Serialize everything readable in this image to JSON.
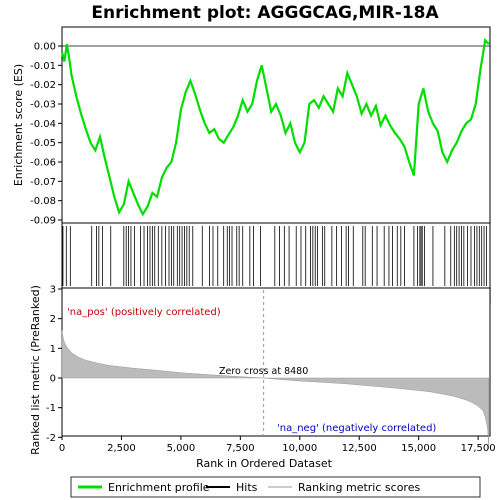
{
  "chart_data": {
    "type": "line",
    "title": "Enrichment plot: AGGGCAG,MIR-18A",
    "es_panel": {
      "ylabel": "Enrichment score (ES)",
      "ylim": [
        -0.09,
        0.0
      ],
      "yticks": [
        "0.00",
        "-0.01",
        "-0.02",
        "-0.03",
        "-0.04",
        "-0.05",
        "-0.06",
        "-0.07",
        "-0.08",
        "-0.09"
      ],
      "series": [
        {
          "name": "Enrichment profile",
          "color": "#00dd00",
          "x": [
            0,
            100,
            200,
            300,
            400,
            600,
            800,
            1000,
            1200,
            1400,
            1600,
            1800,
            2000,
            2200,
            2400,
            2600,
            2800,
            3000,
            3200,
            3400,
            3600,
            3800,
            4000,
            4200,
            4400,
            4600,
            4800,
            5000,
            5200,
            5400,
            5600,
            5800,
            6000,
            6200,
            6400,
            6600,
            6800,
            7000,
            7200,
            7400,
            7600,
            7800,
            8000,
            8200,
            8400,
            8600,
            8800,
            9000,
            9200,
            9400,
            9600,
            9800,
            10000,
            10200,
            10400,
            10600,
            10800,
            11000,
            11200,
            11400,
            11600,
            11800,
            12000,
            12200,
            12400,
            12600,
            12800,
            13000,
            13200,
            13400,
            13600,
            13800,
            14000,
            14200,
            14400,
            14600,
            14800,
            15000,
            15200,
            15400,
            15600,
            15800,
            16000,
            16200,
            16400,
            16600,
            16800,
            17000,
            17200,
            17400,
            17600,
            17800,
            17950
          ],
          "values": [
            -0.003,
            -0.008,
            0.001,
            -0.006,
            -0.015,
            -0.026,
            -0.035,
            -0.043,
            -0.05,
            -0.054,
            -0.047,
            -0.058,
            -0.068,
            -0.078,
            -0.086,
            -0.082,
            -0.07,
            -0.076,
            -0.082,
            -0.087,
            -0.083,
            -0.076,
            -0.078,
            -0.068,
            -0.063,
            -0.06,
            -0.05,
            -0.033,
            -0.024,
            -0.018,
            -0.025,
            -0.033,
            -0.04,
            -0.045,
            -0.043,
            -0.048,
            -0.05,
            -0.046,
            -0.042,
            -0.036,
            -0.028,
            -0.034,
            -0.03,
            -0.018,
            -0.01,
            -0.022,
            -0.034,
            -0.03,
            -0.036,
            -0.045,
            -0.04,
            -0.05,
            -0.055,
            -0.05,
            -0.03,
            -0.028,
            -0.032,
            -0.026,
            -0.03,
            -0.034,
            -0.022,
            -0.026,
            -0.014,
            -0.02,
            -0.026,
            -0.035,
            -0.03,
            -0.036,
            -0.031,
            -0.041,
            -0.036,
            -0.041,
            -0.045,
            -0.048,
            -0.052,
            -0.06,
            -0.067,
            -0.03,
            -0.022,
            -0.034,
            -0.04,
            -0.044,
            -0.055,
            -0.06,
            -0.054,
            -0.05,
            -0.044,
            -0.04,
            -0.038,
            -0.03,
            -0.012,
            0.003,
            0.001
          ]
        }
      ]
    },
    "hits": {
      "name": "Hits",
      "x": [
        40,
        180,
        350,
        1250,
        1450,
        1550,
        1700,
        2050,
        2600,
        2700,
        2800,
        2900,
        3050,
        3300,
        3450,
        3600,
        3700,
        3800,
        3900,
        4050,
        4200,
        4350,
        4500,
        4600,
        4700,
        4850,
        4950,
        5050,
        5150,
        5250,
        5350,
        5500,
        5900,
        6200,
        6350,
        6550,
        6800,
        6950,
        7050,
        7150,
        7350,
        7450,
        7600,
        7900,
        8050,
        8350,
        8950,
        9150,
        9350,
        9550,
        9850,
        10050,
        10250,
        10450,
        10550,
        10650,
        10750,
        10950,
        11050,
        11350,
        11550,
        11750,
        11950,
        12050,
        12250,
        12650,
        12750,
        13050,
        13250,
        13550,
        13750,
        13900,
        14100,
        14250,
        14400,
        14800,
        14950,
        15050,
        15100,
        15150,
        15250,
        15600,
        16100,
        16350,
        16500,
        16600,
        16700,
        16800,
        16900,
        17050,
        17200,
        17350,
        17450,
        17550,
        17650,
        17750,
        17850
      ]
    },
    "ranked_metric": {
      "name": "Ranking metric scores",
      "ylabel": "Ranked list metric (PreRanked)",
      "ylim": [
        -2.5,
        3.5
      ],
      "yticks": [
        "3",
        "2",
        "1",
        "0",
        "-1",
        "-2"
      ],
      "x": [
        0,
        50,
        100,
        200,
        400,
        700,
        1000,
        1500,
        2000,
        3000,
        4000,
        5000,
        6000,
        7000,
        8000,
        8480,
        9000,
        10000,
        11000,
        12000,
        13000,
        14000,
        15000,
        15500,
        16000,
        16500,
        17000,
        17300,
        17500,
        17700,
        17800,
        17900,
        17950
      ],
      "values": [
        1.6,
        1.35,
        1.2,
        1.05,
        0.85,
        0.7,
        0.6,
        0.5,
        0.42,
        0.33,
        0.26,
        0.18,
        0.12,
        0.07,
        0.02,
        0.0,
        -0.04,
        -0.1,
        -0.15,
        -0.2,
        -0.27,
        -0.34,
        -0.42,
        -0.47,
        -0.54,
        -0.62,
        -0.74,
        -0.85,
        -0.95,
        -1.1,
        -1.3,
        -1.7,
        -2.4
      ]
    },
    "xlabel": "Rank in Ordered Dataset",
    "xlim": [
      0,
      18000
    ],
    "xticks": [
      "0",
      "2,500",
      "5,000",
      "7,500",
      "10,000",
      "12,500",
      "15,000",
      "17,500"
    ],
    "zero_cross_label": "Zero cross at 8480",
    "zero_cross": 8480,
    "pos_label": "'na_pos' (positively correlated)",
    "neg_label": "'na_neg' (negatively correlated)",
    "legend": {
      "placement": "bottom",
      "items": [
        {
          "label": "Enrichment profile",
          "color": "#00dd00"
        },
        {
          "label": "Hits",
          "color": "#000000"
        },
        {
          "label": "Ranking metric scores",
          "color": "#bbbbbb"
        }
      ]
    }
  }
}
